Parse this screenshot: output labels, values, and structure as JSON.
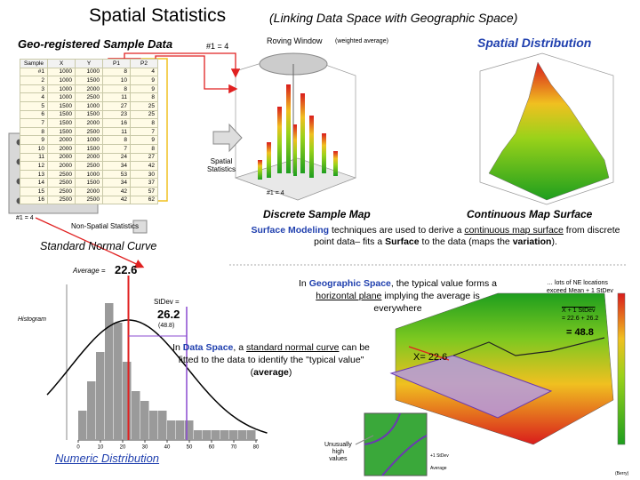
{
  "title": "Spatial Statistics",
  "subtitle": "(Linking Data Space with Geographic Space)",
  "labels": {
    "geo_data": "Geo-registered Sample Data",
    "sample_note": "#1 = 4",
    "roving": "Roving Window",
    "roving_sub": "(weighted average)",
    "spatial_distribution": "Spatial Distribution",
    "spatial_stats_1": "Spatial",
    "spatial_stats_2": "Statistics",
    "map_note": "#1 = 4",
    "left_note": "#1 = 4",
    "discrete": "Discrete  Sample Map",
    "continuous": "Continuous Map Surface",
    "non_spatial": "Non-Spatial Statistics",
    "normal_curve": "Standard Normal Curve",
    "average_label": "Average =",
    "stdev_label": "StDev =",
    "stdev_note": "(48.8)",
    "histogram": "Histogram",
    "numeric_distribution": "Numeric Distribution",
    "unusually": "Unusually",
    "high": "high",
    "values": "values",
    "plus_sd": "+1 StDev",
    "average_small": "Average",
    "credit": "(Berry)",
    "ne_note_1": "… lots of NE locations",
    "ne_note_2": "exceed Mean + 1 StDev",
    "sd_formula": "X + 1 StDev",
    "sd_sum": "= 22.6 + 26.2",
    "sd_result": "= 48.8",
    "x_mean": "X= 22.6"
  },
  "surface_text": [
    "Surface Modeling",
    " techniques are used to derive a ",
    "continuous map surface",
    " from discrete point data– fits a ",
    "Surface",
    " to the data (maps the ",
    "variation",
    ")."
  ],
  "geo_text": [
    "In ",
    "Geographic Space",
    ", the typical value ",
    "forms a ",
    "horizontal plane",
    " implying ",
    "the average is everywhere"
  ],
  "data_text": [
    "In ",
    "Data Space",
    ", a ",
    "standard normal curve",
    "  can ",
    "be fitted to the data to identify ",
    "the \"typical value\" (",
    "average",
    ")"
  ],
  "stats": {
    "mean": 22.6,
    "stdev": 26.2,
    "mean_plus_sd": 48.8
  },
  "table": {
    "header": [
      "Sample",
      "X",
      "Y",
      "P1",
      "P2"
    ],
    "rows": [
      [
        "#1",
        "1000",
        "1000",
        "8",
        "4"
      ],
      [
        "2",
        "1000",
        "1500",
        "10",
        "9"
      ],
      [
        "3",
        "1000",
        "2000",
        "8",
        "9"
      ],
      [
        "4",
        "1000",
        "2500",
        "11",
        "8"
      ],
      [
        "5",
        "1500",
        "1000",
        "27",
        "25"
      ],
      [
        "6",
        "1500",
        "1500",
        "23",
        "25"
      ],
      [
        "7",
        "1500",
        "2000",
        "16",
        "8"
      ],
      [
        "8",
        "1500",
        "2500",
        "11",
        "7"
      ],
      [
        "9",
        "2000",
        "1000",
        "8",
        "9"
      ],
      [
        "10",
        "2000",
        "1500",
        "7",
        "8"
      ],
      [
        "11",
        "2000",
        "2000",
        "24",
        "27"
      ],
      [
        "12",
        "2000",
        "2500",
        "34",
        "42"
      ],
      [
        "13",
        "2500",
        "1000",
        "53",
        "30"
      ],
      [
        "14",
        "2500",
        "1500",
        "34",
        "37"
      ],
      [
        "15",
        "2500",
        "2000",
        "42",
        "57"
      ],
      [
        "16",
        "2500",
        "2500",
        "42",
        "62"
      ]
    ]
  },
  "histogram": {
    "bins": [
      0,
      4,
      8,
      12,
      16,
      20,
      24,
      28,
      32,
      36,
      40,
      44,
      48,
      52,
      56,
      60,
      64,
      68,
      72,
      76,
      80
    ],
    "counts": [
      3,
      6,
      9,
      14,
      12,
      8,
      5,
      4,
      3,
      3,
      2,
      2,
      2,
      1,
      1,
      1,
      1,
      1,
      1,
      1
    ],
    "ylim": [
      0,
      15
    ],
    "xlim": [
      0,
      80
    ],
    "xticks": [
      0,
      10,
      20,
      30,
      40,
      50,
      60,
      70,
      80
    ]
  }
}
